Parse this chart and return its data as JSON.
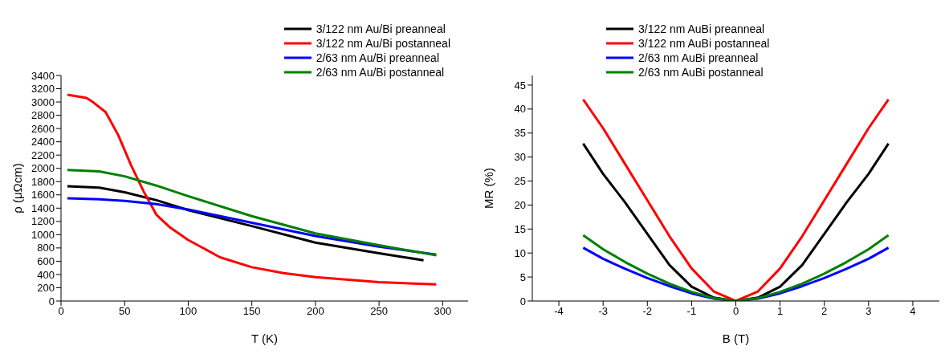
{
  "chart_data": [
    {
      "type": "line",
      "xlabel": "T (K)",
      "ylabel": "ρ (μΩcm)",
      "xlim": [
        0,
        320
      ],
      "xticks": [
        0,
        50,
        100,
        150,
        200,
        250,
        300
      ],
      "ylim": [
        0,
        3400
      ],
      "yticks": [
        0,
        200,
        400,
        600,
        800,
        1000,
        1200,
        1400,
        1600,
        1800,
        2000,
        2200,
        2400,
        2600,
        2800,
        3000,
        3200,
        3400
      ],
      "legend": "top right",
      "grid": false,
      "marker": "none",
      "series": [
        {
          "name": "3/122 nm Au/Bi preanneal",
          "color": "#000000",
          "x": [
            5,
            30,
            50,
            75,
            100,
            150,
            200,
            250,
            285
          ],
          "values": [
            1730,
            1710,
            1640,
            1520,
            1370,
            1130,
            880,
            720,
            615
          ]
        },
        {
          "name": "3/122 nm Au/Bi postanneal",
          "color": "#ff0000",
          "x": [
            5,
            20,
            25,
            35,
            45,
            55,
            65,
            75,
            85,
            100,
            125,
            150,
            175,
            200,
            250,
            295
          ],
          "values": [
            3110,
            3060,
            3000,
            2850,
            2500,
            2050,
            1650,
            1300,
            1120,
            920,
            660,
            510,
            420,
            360,
            285,
            250
          ]
        },
        {
          "name": "2/63 nm Au/Bi preanneal",
          "color": "#0000ff",
          "x": [
            5,
            30,
            50,
            75,
            100,
            150,
            200,
            250,
            295
          ],
          "values": [
            1550,
            1535,
            1510,
            1460,
            1380,
            1180,
            980,
            820,
            700
          ]
        },
        {
          "name": "2/63 nm Au/Bi postanneal",
          "color": "#008000",
          "x": [
            5,
            30,
            50,
            75,
            100,
            150,
            200,
            250,
            295
          ],
          "values": [
            1975,
            1955,
            1880,
            1740,
            1580,
            1280,
            1020,
            840,
            690
          ]
        }
      ]
    },
    {
      "type": "line",
      "xlabel": "B (T)",
      "ylabel": "MR (%)",
      "xlim": [
        -4.6,
        4.6
      ],
      "xticks": [
        -4,
        -3,
        -2,
        -1,
        0,
        1,
        2,
        3,
        4
      ],
      "ylim": [
        0,
        47
      ],
      "yticks": [
        0,
        5,
        10,
        15,
        20,
        25,
        30,
        35,
        40,
        45
      ],
      "legend": "top",
      "grid": false,
      "marker": "none",
      "x": [
        -3.45,
        -3,
        -2.5,
        -2,
        -1.5,
        -1,
        -0.5,
        0,
        0.5,
        1,
        1.5,
        2,
        2.5,
        3,
        3.45
      ],
      "series": [
        {
          "name": "3/122 nm AuBi preanneal",
          "color": "#000000",
          "values": [
            32.8,
            26.5,
            20.5,
            14,
            7.5,
            3,
            0.7,
            0,
            0.7,
            3,
            7.5,
            14,
            20.5,
            26.5,
            32.8
          ]
        },
        {
          "name": "3/122 nm AuBi postanneal",
          "color": "#ff0000",
          "values": [
            42,
            36,
            28.5,
            21,
            13.5,
            6.8,
            2,
            0,
            2,
            6.8,
            13.5,
            21,
            28.5,
            36,
            42
          ]
        },
        {
          "name": "2/63 nm AuBi preanneal",
          "color": "#0000ff",
          "values": [
            11.1,
            8.8,
            6.7,
            4.8,
            3.1,
            1.6,
            0.5,
            0,
            0.5,
            1.6,
            3.1,
            4.8,
            6.7,
            8.8,
            11.1
          ]
        },
        {
          "name": "2/63 nm AuBi postanneal",
          "color": "#008000",
          "values": [
            13.7,
            10.8,
            8.1,
            5.7,
            3.6,
            1.9,
            0.6,
            0,
            0.6,
            1.9,
            3.6,
            5.7,
            8.1,
            10.8,
            13.7
          ]
        }
      ]
    }
  ]
}
